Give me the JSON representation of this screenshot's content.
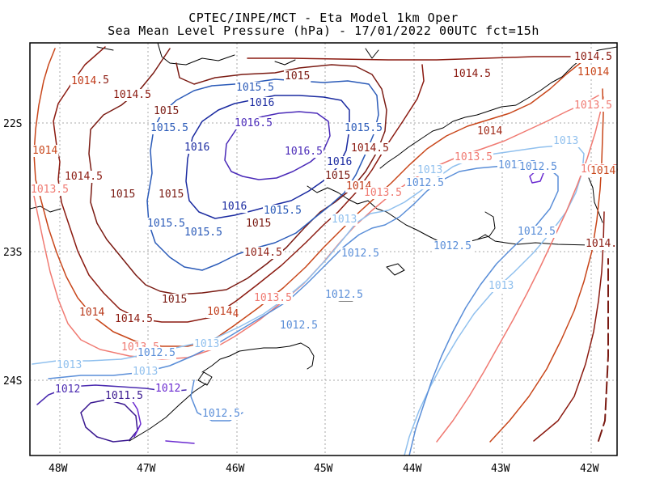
{
  "header": {
    "line1": "CPTEC/INPE/MCT -  Eta Model 1km Oper",
    "line2": "Sea Mean Level Pressure (hPa) - 17/01/2022 00UTC fct=15h"
  },
  "axes": {
    "x_ticks": [
      "48W",
      "47W",
      "46W",
      "45W",
      "44W",
      "43W",
      "42W"
    ],
    "y_ticks": [
      "22S",
      "23S",
      "24S"
    ]
  },
  "isobar_labels": [
    {
      "text": "1015",
      "color": "#7a1a12"
    },
    {
      "text": "1014.5",
      "color": "#8b1a10"
    },
    {
      "text": "1014.5",
      "color": "#8b1a10"
    },
    {
      "text": "1014.5",
      "color": "#8b1a10"
    },
    {
      "text": "1014",
      "color": "#c8461a"
    },
    {
      "text": "1014",
      "color": "#c8461a"
    },
    {
      "text": "1013.5",
      "color": "#f07a72"
    },
    {
      "text": "1014",
      "color": "#b8381a"
    },
    {
      "text": "1014",
      "color": "#c03a18"
    },
    {
      "text": "1013.5",
      "color": "#f07a72"
    },
    {
      "text": "1014.5",
      "color": "#8b1a10"
    },
    {
      "text": "1014",
      "color": "#a02a18"
    },
    {
      "text": "1015",
      "color": "#7a1a12"
    },
    {
      "text": "1015",
      "color": "#7a1a12"
    },
    {
      "text": "1015.5",
      "color": "#2a5ab8"
    },
    {
      "text": "1016",
      "color": "#1a2aa0"
    },
    {
      "text": "1015.5",
      "color": "#2a5ab8"
    },
    {
      "text": "1016.5",
      "color": "#4a2ab8"
    },
    {
      "text": "1016",
      "color": "#1a2aa0"
    },
    {
      "text": "1016.5",
      "color": "#4a2ab8"
    },
    {
      "text": "1016",
      "color": "#1a2aa0"
    },
    {
      "text": "1015.5",
      "color": "#2a5ab8"
    },
    {
      "text": "1015",
      "color": "#7a1a12"
    },
    {
      "text": "1014.5",
      "color": "#8b1a10"
    },
    {
      "text": "1015",
      "color": "#7a1a12"
    },
    {
      "text": "1014",
      "color": "#c03a18"
    },
    {
      "text": "1013.5",
      "color": "#f07a72"
    },
    {
      "text": "1016",
      "color": "#1a2aa0"
    },
    {
      "text": "1015.5",
      "color": "#2a5ab8"
    },
    {
      "text": "1015",
      "color": "#7a1a12"
    },
    {
      "text": "1015.5",
      "color": "#2a5ab8"
    },
    {
      "text": "1015.5",
      "color": "#2a5ab8"
    },
    {
      "text": "1014.5",
      "color": "#8b1a10"
    },
    {
      "text": "1015",
      "color": "#7a1a12"
    },
    {
      "text": "1014.5",
      "color": "#8b1a10"
    },
    {
      "text": "1014",
      "color": "#c03a18"
    },
    {
      "text": "1014",
      "color": "#c03a18"
    },
    {
      "text": "1013.5",
      "color": "#f07a72"
    },
    {
      "text": "1013",
      "color": "#90c0ee"
    },
    {
      "text": "1013",
      "color": "#90c0ee"
    },
    {
      "text": "1012.5",
      "color": "#5a8ed8"
    },
    {
      "text": "1012.5",
      "color": "#5a8ed8"
    },
    {
      "text": "1012.5",
      "color": "#5a8ed8"
    },
    {
      "text": "1012.5",
      "color": "#5a8ed8"
    },
    {
      "text": "1012.5",
      "color": "#5a8ed8"
    },
    {
      "text": "1012.5",
      "color": "#5a8ed8"
    },
    {
      "text": "1013.5",
      "color": "#f07a72"
    },
    {
      "text": "1013.5",
      "color": "#f07a72"
    },
    {
      "text": "1013",
      "color": "#90c0ee"
    },
    {
      "text": "1013",
      "color": "#90c0ee"
    },
    {
      "text": "1013",
      "color": "#90c0ee"
    },
    {
      "text": "1013",
      "color": "#90c0ee"
    },
    {
      "text": "1013",
      "color": "#90c0ee"
    },
    {
      "text": "1012.5",
      "color": "#5a8ed8"
    },
    {
      "text": "1012.5",
      "color": "#5a8ed8"
    },
    {
      "text": "1012.5",
      "color": "#5a8ed8"
    },
    {
      "text": "1012",
      "color": "#4a2ab0"
    },
    {
      "text": "1011.5",
      "color": "#3a1890"
    },
    {
      "text": "1012",
      "color": "#6a2ad0"
    },
    {
      "text": "1012.5",
      "color": "#5a8ed8"
    },
    {
      "text": "1014.5",
      "color": "#8b1a10"
    },
    {
      "text": "1014",
      "color": "#c8461a"
    },
    {
      "text": "1013.5",
      "color": "#f07a72"
    },
    {
      "text": "1014",
      "color": "#c8461a"
    },
    {
      "text": "1014.",
      "color": "#8b1a10"
    }
  ]
}
